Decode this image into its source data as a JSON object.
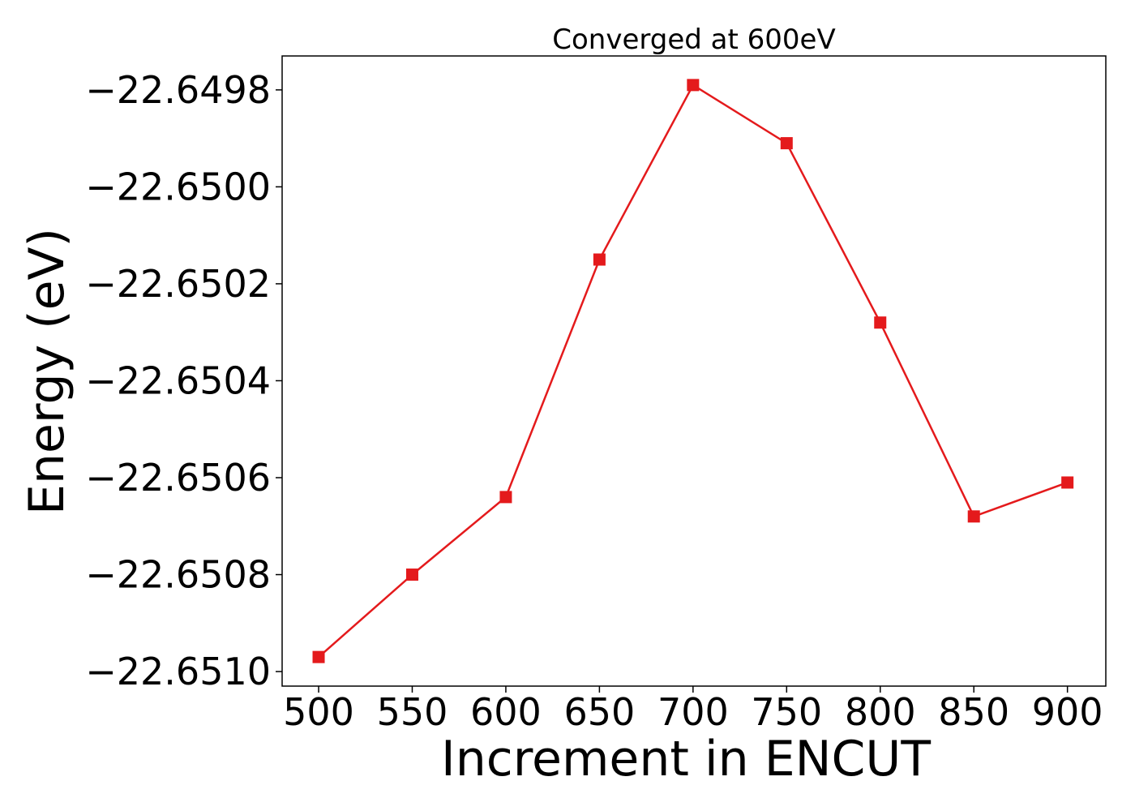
{
  "chart_data": {
    "type": "line",
    "title": "Converged at 600eV",
    "xlabel": "Increment in ENCUT",
    "ylabel": "Energy (eV)",
    "x": [
      500,
      550,
      600,
      650,
      700,
      750,
      800,
      850,
      900
    ],
    "series": [
      {
        "values": [
          -22.65097,
          -22.6508,
          -22.65064,
          -22.65015,
          -22.64979,
          -22.64991,
          -22.65028,
          -22.65068,
          -22.65061
        ],
        "color": "#e41a1c",
        "marker": "square"
      }
    ],
    "x_ticks": [
      500,
      550,
      600,
      650,
      700,
      750,
      800,
      850,
      900
    ],
    "x_tick_labels": [
      "500",
      "550",
      "600",
      "650",
      "700",
      "750",
      "800",
      "850",
      "900"
    ],
    "y_ticks": [
      -22.6498,
      -22.65,
      -22.6502,
      -22.6504,
      -22.6506,
      -22.6508,
      -22.651
    ],
    "y_tick_labels": [
      "−22.6498",
      "−22.6500",
      "−22.6502",
      "−22.6504",
      "−22.6506",
      "−22.6508",
      "−22.6510"
    ],
    "xlim": [
      480.5,
      920.5
    ],
    "ylim": [
      -22.65103,
      -22.64973
    ],
    "grid": false
  }
}
